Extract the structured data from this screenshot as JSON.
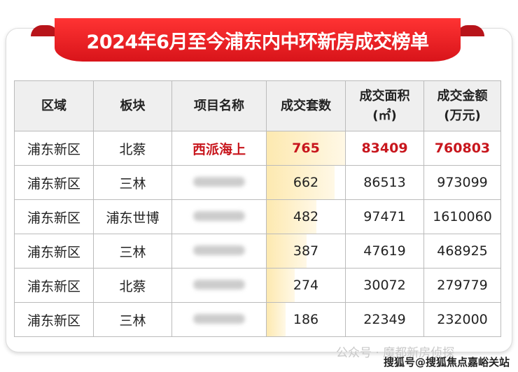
{
  "title": "2024年6月至今浦东内中环新房成交榜单",
  "headers": [
    "区域",
    "板块",
    "项目名称",
    "成交套数",
    "成交面积\n(㎡)",
    "成交金额\n(万元)"
  ],
  "rows": [
    {
      "district": "浦东新区",
      "block": "北蔡",
      "project": "西派海上",
      "units": 765,
      "area": "83409",
      "amount": "760803",
      "highlight": true
    },
    {
      "district": "浦东新区",
      "block": "三林",
      "project": null,
      "units": 662,
      "area": "86513",
      "amount": "973099"
    },
    {
      "district": "浦东新区",
      "block": "浦东世博",
      "project": null,
      "units": 482,
      "area": "97471",
      "amount": "1610060"
    },
    {
      "district": "浦东新区",
      "block": "三林",
      "project": null,
      "units": 387,
      "area": "47619",
      "amount": "468925"
    },
    {
      "district": "浦东新区",
      "block": "北蔡",
      "project": null,
      "units": 274,
      "area": "30072",
      "amount": "279779"
    },
    {
      "district": "浦东新区",
      "block": "三林",
      "project": null,
      "units": 186,
      "area": "22349",
      "amount": "232000"
    }
  ],
  "watermark": {
    "wechat": "公众号 · 魔都新房侦探",
    "sohu": "搜狐号@搜狐焦点嘉峪关站"
  },
  "colors": {
    "accent": "#c8161d",
    "bar": "#fde9b0"
  }
}
